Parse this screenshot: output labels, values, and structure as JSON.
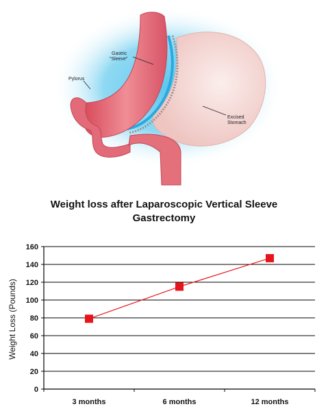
{
  "illustration": {
    "labels": {
      "gastric_line1": "Gastric",
      "gastric_line2": "\"Sleeve\"",
      "pylorus": "Pylorus",
      "excised_line1": "Excised",
      "excised_line2": "Stomach"
    },
    "colors": {
      "background_glow": "#5cc8ee",
      "sleeve": "#e7707c",
      "excised_stomach": "#f6dcd8",
      "staple_line": "#9a8f8f"
    }
  },
  "chart_title": {
    "line1": "Weight loss after Laparoscopic Vertical Sleeve",
    "line2": "Gastrectomy"
  },
  "chart_data": {
    "type": "line",
    "title": "Weight loss after Laparoscopic Vertical Sleeve Gastrectomy",
    "categories": [
      "3 months",
      "6 months",
      "12 months"
    ],
    "series": [
      {
        "values": [
          79,
          115,
          147
        ],
        "color": "#e8141b",
        "marker": "square"
      }
    ],
    "xlabel": "",
    "ylabel": "Weight Loss (Pounds)",
    "ylim": [
      0,
      160
    ],
    "yticks": [
      0,
      20,
      40,
      60,
      80,
      100,
      120,
      140,
      160
    ],
    "grid": true,
    "gridline_color": "#000000",
    "legend": "none"
  }
}
